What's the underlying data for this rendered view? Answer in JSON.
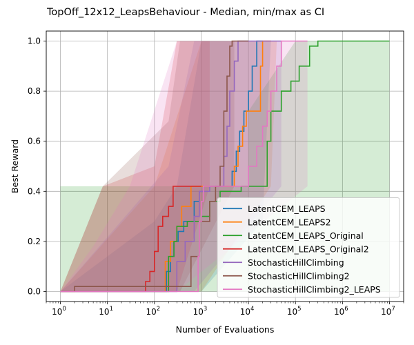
{
  "chart_data": {
    "type": "line",
    "title": "TopOff_12x12_LeapsBehaviour - Median, min/max as CI",
    "xlabel": "Number of Evaluations",
    "ylabel": "Best Reward",
    "x_scale": "log",
    "xlim": [
      0.5,
      20000000
    ],
    "ylim": [
      -0.04,
      1.04
    ],
    "x_ticks": [
      1,
      10,
      100,
      1000,
      10000,
      100000,
      1000000,
      10000000
    ],
    "x_tick_labels": [
      {
        "base": "10",
        "exp": "0"
      },
      {
        "base": "10",
        "exp": "1"
      },
      {
        "base": "10",
        "exp": "2"
      },
      {
        "base": "10",
        "exp": "3"
      },
      {
        "base": "10",
        "exp": "4"
      },
      {
        "base": "10",
        "exp": "5"
      },
      {
        "base": "10",
        "exp": "6"
      },
      {
        "base": "10",
        "exp": "7"
      }
    ],
    "y_ticks": [
      0.0,
      0.2,
      0.4,
      0.6,
      0.8,
      1.0
    ],
    "y_tick_labels": [
      "0.0",
      "0.2",
      "0.4",
      "0.6",
      "0.8",
      "1.0"
    ],
    "grid": true,
    "legend_position": "lower-right",
    "series": [
      {
        "name": "LatentCEM_LEAPS",
        "color": "#1f77b4",
        "median": [
          [
            1,
            0
          ],
          [
            150,
            0
          ],
          [
            180,
            0.08
          ],
          [
            220,
            0.14
          ],
          [
            260,
            0.2
          ],
          [
            320,
            0.24
          ],
          [
            420,
            0.28
          ],
          [
            700,
            0.36
          ],
          [
            900,
            0.4
          ],
          [
            1100,
            0.42
          ],
          [
            2000,
            0.42
          ],
          [
            3500,
            0.42
          ],
          [
            4500,
            0.48
          ],
          [
            5500,
            0.56
          ],
          [
            6500,
            0.64
          ],
          [
            8000,
            0.72
          ],
          [
            10000,
            0.8
          ],
          [
            12000,
            0.9
          ],
          [
            15000,
            1.0
          ],
          [
            20000,
            1.0
          ]
        ],
        "band": [
          [
            1,
            0,
            0
          ],
          [
            100,
            0,
            0.28
          ],
          [
            300,
            0,
            0.42
          ],
          [
            1000,
            0,
            1.0
          ],
          [
            20000,
            0.28,
            1.0
          ],
          [
            30000,
            1.0,
            1.0
          ]
        ]
      },
      {
        "name": "LatentCEM_LEAPS2",
        "color": "#ff7f0e",
        "median": [
          [
            1,
            0
          ],
          [
            130,
            0
          ],
          [
            170,
            0.12
          ],
          [
            220,
            0.2
          ],
          [
            300,
            0.26
          ],
          [
            380,
            0.34
          ],
          [
            600,
            0.42
          ],
          [
            1000,
            0.42
          ],
          [
            3000,
            0.42
          ],
          [
            4500,
            0.42
          ],
          [
            5000,
            0.5
          ],
          [
            6000,
            0.58
          ],
          [
            7500,
            0.66
          ],
          [
            9000,
            0.72
          ],
          [
            15000,
            0.72
          ],
          [
            18000,
            0.9
          ],
          [
            20000,
            1.0
          ],
          [
            30000,
            1.0
          ]
        ],
        "band": [
          [
            1,
            0,
            0
          ],
          [
            100,
            0,
            0.42
          ],
          [
            1000,
            0,
            1.0
          ],
          [
            30000,
            0.42,
            1.0
          ],
          [
            40000,
            1.0,
            1.0
          ]
        ]
      },
      {
        "name": "LatentCEM_LEAPS_Original",
        "color": "#2ca02c",
        "median": [
          [
            1,
            0
          ],
          [
            150,
            0
          ],
          [
            200,
            0.14
          ],
          [
            260,
            0.2
          ],
          [
            300,
            0.26
          ],
          [
            500,
            0.28
          ],
          [
            800,
            0.28
          ],
          [
            1000,
            0.3
          ],
          [
            1500,
            0.36
          ],
          [
            2500,
            0.4
          ],
          [
            7000,
            0.42
          ],
          [
            20000,
            0.42
          ],
          [
            25000,
            0.6
          ],
          [
            30000,
            0.72
          ],
          [
            50000,
            0.8
          ],
          [
            80000,
            0.84
          ],
          [
            120000,
            0.9
          ],
          [
            200000,
            0.98
          ],
          [
            300000,
            1.0
          ],
          [
            10000000,
            1.0
          ]
        ],
        "band": [
          [
            1,
            0,
            0
          ],
          [
            1,
            0,
            0.42
          ],
          [
            10000,
            0,
            0.42
          ],
          [
            10000,
            0,
            0.72
          ],
          [
            100000,
            0,
            1.0
          ],
          [
            10000000,
            0,
            1.0
          ]
        ]
      },
      {
        "name": "LatentCEM_LEAPS_Original2",
        "color": "#d62728",
        "median": [
          [
            1,
            0
          ],
          [
            50,
            0
          ],
          [
            65,
            0.04
          ],
          [
            80,
            0.08
          ],
          [
            100,
            0.16
          ],
          [
            120,
            0.26
          ],
          [
            150,
            0.3
          ],
          [
            200,
            0.34
          ],
          [
            250,
            0.42
          ],
          [
            800,
            0.42
          ],
          [
            1000,
            0.42
          ]
        ],
        "band": [
          [
            1,
            0,
            0
          ],
          [
            8,
            0,
            0.42
          ],
          [
            100,
            0,
            0.5
          ],
          [
            300,
            0,
            1.0
          ],
          [
            1500,
            0.42,
            1.0
          ]
        ]
      },
      {
        "name": "StochasticHillClimbing",
        "color": "#9467bd",
        "median": [
          [
            1,
            0
          ],
          [
            200,
            0
          ],
          [
            300,
            0.12
          ],
          [
            450,
            0.2
          ],
          [
            700,
            0.3
          ],
          [
            900,
            0.4
          ],
          [
            1500,
            0.42
          ],
          [
            2500,
            0.42
          ],
          [
            3000,
            0.54
          ],
          [
            3500,
            0.66
          ],
          [
            4000,
            0.8
          ],
          [
            5000,
            0.92
          ],
          [
            6000,
            1.0
          ],
          [
            50000,
            1.0
          ]
        ],
        "band": [
          [
            1,
            0,
            0
          ],
          [
            200,
            0,
            0.5
          ],
          [
            700,
            0,
            1.0
          ],
          [
            50000,
            0.42,
            1.0
          ]
        ]
      },
      {
        "name": "StochasticHillClimbing2",
        "color": "#8c564b",
        "median": [
          [
            1,
            0
          ],
          [
            2,
            0
          ],
          [
            2,
            0.02
          ],
          [
            300,
            0.02
          ],
          [
            600,
            0.14
          ],
          [
            900,
            0.28
          ],
          [
            1500,
            0.36
          ],
          [
            2000,
            0.42
          ],
          [
            2500,
            0.5
          ],
          [
            3000,
            0.72
          ],
          [
            3500,
            0.86
          ],
          [
            4000,
            0.98
          ],
          [
            4500,
            1.0
          ],
          [
            10000,
            1.0
          ]
        ],
        "band": [
          [
            1,
            0,
            0
          ],
          [
            8,
            0,
            0.42
          ],
          [
            200,
            0,
            0.68
          ],
          [
            350,
            0,
            1.0
          ],
          [
            5000,
            0.42,
            1.0
          ]
        ]
      },
      {
        "name": "StochasticHillClimbing2_LEAPS",
        "color": "#e377c2",
        "median": [
          [
            1,
            0
          ],
          [
            800,
            0
          ],
          [
            850,
            0.14
          ],
          [
            900,
            0.28
          ],
          [
            1000,
            0.36
          ],
          [
            1100,
            0.42
          ],
          [
            5000,
            0.42
          ],
          [
            10000,
            0.5
          ],
          [
            15000,
            0.58
          ],
          [
            20000,
            0.66
          ],
          [
            25000,
            0.72
          ],
          [
            30000,
            0.8
          ],
          [
            40000,
            0.9
          ],
          [
            50000,
            1.0
          ],
          [
            180000,
            1.0
          ]
        ],
        "band": [
          [
            1,
            0,
            0
          ],
          [
            5,
            0,
            0.18
          ],
          [
            30,
            0,
            0.42
          ],
          [
            300,
            0,
            1.0
          ],
          [
            180000,
            0.42,
            1.0
          ]
        ]
      }
    ]
  }
}
